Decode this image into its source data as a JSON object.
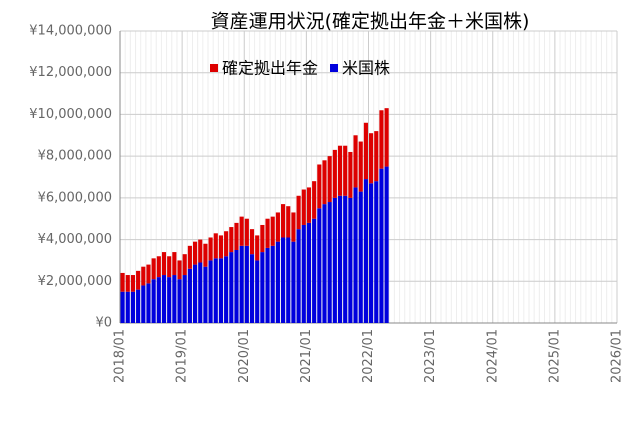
{
  "chart_data": {
    "type": "stacked_bar",
    "title": "資産運用状況(確定拠出年金＋米国株)",
    "categories": [
      "2018/01",
      null,
      null,
      null,
      null,
      null,
      null,
      null,
      null,
      null,
      null,
      null,
      "2019/01",
      null,
      null,
      null,
      null,
      null,
      null,
      null,
      null,
      null,
      null,
      null,
      "2020/01",
      null,
      null,
      null,
      null,
      null,
      null,
      null,
      null,
      null,
      null,
      null,
      "2021/01",
      null,
      null,
      null,
      null,
      null,
      null,
      null,
      null,
      null,
      null,
      null,
      "2022/01",
      null,
      null,
      null,
      null,
      null,
      null,
      null,
      null,
      null,
      null,
      null,
      "2023/01",
      null,
      null,
      null,
      null,
      null,
      null,
      null,
      null,
      null,
      null,
      null,
      "2024/01",
      null,
      null,
      null,
      null,
      null,
      null,
      null,
      null,
      null,
      null,
      null,
      "2025/01",
      null,
      null,
      null,
      null,
      null,
      null,
      null,
      null,
      null,
      null,
      null,
      "2026/01"
    ],
    "series": [
      {
        "name": "米国株",
        "color": "#0000dd",
        "values": [
          1500000,
          1500000,
          1500000,
          1600000,
          1800000,
          1900000,
          2100000,
          2200000,
          2300000,
          2200000,
          2300000,
          2100000,
          2300000,
          2600000,
          2800000,
          2900000,
          2700000,
          3000000,
          3100000,
          3100000,
          3200000,
          3400000,
          3500000,
          3700000,
          3700000,
          3300000,
          3000000,
          3400000,
          3600000,
          3700000,
          3900000,
          4100000,
          4100000,
          3900000,
          4500000,
          4700000,
          4800000,
          5000000,
          5500000,
          5700000,
          5800000,
          6000000,
          6100000,
          6100000,
          6000000,
          6500000,
          6300000,
          6900000,
          6700000,
          6800000,
          7400000,
          7500000,
          0,
          0,
          0,
          0,
          0,
          0,
          0,
          0,
          0,
          0,
          0,
          0,
          0,
          0,
          0,
          0,
          0,
          0,
          0,
          0,
          0,
          0,
          0,
          0,
          0,
          0,
          0,
          0,
          0,
          0,
          0,
          0,
          0,
          0,
          0,
          0,
          0,
          0,
          0,
          0,
          0,
          0,
          0,
          0,
          0
        ]
      },
      {
        "name": "確定拠出年金",
        "color": "#dd0000",
        "values": [
          900000,
          800000,
          800000,
          900000,
          900000,
          900000,
          1000000,
          1000000,
          1100000,
          1000000,
          1100000,
          900000,
          1000000,
          1100000,
          1100000,
          1100000,
          1100000,
          1100000,
          1200000,
          1100000,
          1200000,
          1200000,
          1300000,
          1400000,
          1300000,
          1200000,
          1200000,
          1300000,
          1400000,
          1400000,
          1400000,
          1600000,
          1500000,
          1400000,
          1600000,
          1700000,
          1700000,
          1800000,
          2100000,
          2100000,
          2200000,
          2300000,
          2400000,
          2400000,
          2200000,
          2500000,
          2400000,
          2700000,
          2400000,
          2400000,
          2800000,
          2800000,
          0,
          0,
          0,
          0,
          0,
          0,
          0,
          0,
          0,
          0,
          0,
          0,
          0,
          0,
          0,
          0,
          0,
          0,
          0,
          0,
          0,
          0,
          0,
          0,
          0,
          0,
          0,
          0,
          0,
          0,
          0,
          0,
          0,
          0,
          0,
          0,
          0,
          0,
          0,
          0,
          0,
          0,
          0,
          0,
          0
        ]
      }
    ],
    "ylim": [
      0,
      14000000
    ],
    "yticks": [
      {
        "value": 0,
        "label": "¥0"
      },
      {
        "value": 2000000,
        "label": "¥2,000,000"
      },
      {
        "value": 4000000,
        "label": "¥4,000,000"
      },
      {
        "value": 6000000,
        "label": "¥6,000,000"
      },
      {
        "value": 8000000,
        "label": "¥8,000,000"
      },
      {
        "value": 10000000,
        "label": "¥10,000,000"
      },
      {
        "value": 12000000,
        "label": "¥12,000,000"
      },
      {
        "value": 14000000,
        "label": "¥14,000,000"
      }
    ],
    "grid": true,
    "legend": "top"
  }
}
